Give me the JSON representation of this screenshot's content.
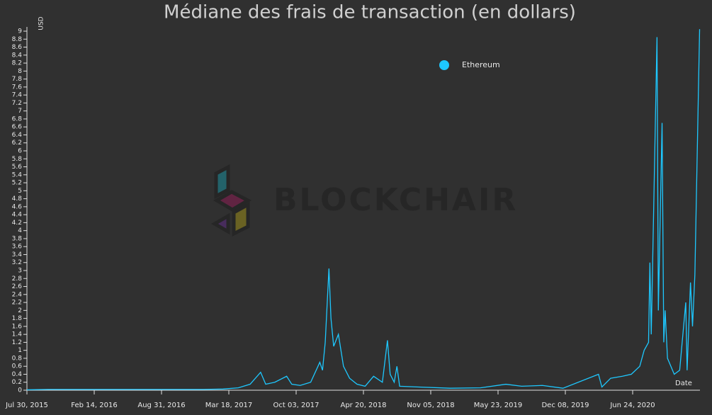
{
  "chart_data": {
    "type": "line",
    "title": "Médiane des frais de transaction (en dollars)",
    "y_label": "USD",
    "x_label": "Date",
    "watermark": "BLOCKCHAIR",
    "legend": "top",
    "x": [
      "2015-07-30",
      "2015-10-01",
      "2016-01-01",
      "2016-04-01",
      "2016-07-01",
      "2016-10-01",
      "2017-01-01",
      "2017-03-01",
      "2017-04-15",
      "2017-05-20",
      "2017-06-20",
      "2017-07-05",
      "2017-08-01",
      "2017-09-05",
      "2017-09-20",
      "2017-10-15",
      "2017-11-15",
      "2017-12-12",
      "2017-12-20",
      "2017-12-28",
      "2018-01-08",
      "2018-01-14",
      "2018-01-22",
      "2018-02-05",
      "2018-02-20",
      "2018-03-10",
      "2018-04-01",
      "2018-04-25",
      "2018-05-20",
      "2018-06-15",
      "2018-06-30",
      "2018-07-08",
      "2018-07-20",
      "2018-07-28",
      "2018-08-05",
      "2018-10-01",
      "2019-01-01",
      "2019-04-01",
      "2019-06-15",
      "2019-08-01",
      "2019-10-01",
      "2019-12-01",
      "2020-03-15",
      "2020-03-25",
      "2020-04-20",
      "2020-05-25",
      "2020-06-20",
      "2020-07-15",
      "2020-07-28",
      "2020-08-10",
      "2020-08-14",
      "2020-08-18",
      "2020-09-04",
      "2020-09-08",
      "2020-09-19",
      "2020-09-24",
      "2020-09-28",
      "2020-10-05",
      "2020-10-25",
      "2020-11-10",
      "2020-11-28",
      "2020-12-02",
      "2020-12-12",
      "2020-12-18",
      "2020-12-25",
      "2021-01-08"
    ],
    "series": [
      {
        "name": "Ethereum",
        "color": "#1ec8ff",
        "values": [
          0.01,
          0.02,
          0.02,
          0.02,
          0.02,
          0.02,
          0.02,
          0.03,
          0.06,
          0.15,
          0.45,
          0.15,
          0.2,
          0.35,
          0.15,
          0.12,
          0.2,
          0.7,
          0.5,
          1.2,
          3.05,
          1.8,
          1.1,
          1.4,
          0.6,
          0.3,
          0.15,
          0.1,
          0.35,
          0.2,
          1.25,
          0.4,
          0.2,
          0.6,
          0.1,
          0.08,
          0.05,
          0.06,
          0.15,
          0.1,
          0.12,
          0.05,
          0.4,
          0.08,
          0.3,
          0.35,
          0.4,
          0.6,
          1.0,
          1.2,
          3.2,
          1.4,
          8.85,
          2.0,
          6.7,
          1.2,
          2.0,
          0.8,
          0.4,
          0.5,
          2.2,
          0.5,
          2.7,
          1.6,
          2.9,
          9.05
        ]
      }
    ],
    "xlim": [
      "2015-07-30",
      "2021-01-09"
    ],
    "xticks": [
      {
        "value": "2015-07-30",
        "label": "Jul 30, 2015"
      },
      {
        "value": "2016-02-14",
        "label": "Feb 14, 2016"
      },
      {
        "value": "2016-08-31",
        "label": "Aug 31, 2016"
      },
      {
        "value": "2017-03-18",
        "label": "Mar 18, 2017"
      },
      {
        "value": "2017-10-03",
        "label": "Oct 03, 2017"
      },
      {
        "value": "2018-04-20",
        "label": "Apr 20, 2018"
      },
      {
        "value": "2018-11-05",
        "label": "Nov 05, 2018"
      },
      {
        "value": "2019-05-23",
        "label": "May 23, 2019"
      },
      {
        "value": "2019-12-08",
        "label": "Dec 08, 2019"
      },
      {
        "value": "2020-06-24",
        "label": "Jun 24, 2020"
      }
    ],
    "ylim": [
      0,
      9
    ],
    "yticks": [
      0,
      0.2,
      0.4,
      0.6,
      0.8,
      1,
      1.2,
      1.4,
      1.6,
      1.8,
      2,
      2.2,
      2.4,
      2.6,
      2.8,
      3,
      3.2,
      3.4,
      3.6,
      3.8,
      4,
      4.2,
      4.4,
      4.6,
      4.8,
      5,
      5.2,
      5.4,
      5.6,
      5.8,
      6,
      6.2,
      6.4,
      6.6,
      6.8,
      7,
      7.2,
      7.4,
      7.6,
      7.8,
      8,
      8.2,
      8.4,
      8.6,
      8.8,
      9
    ]
  }
}
